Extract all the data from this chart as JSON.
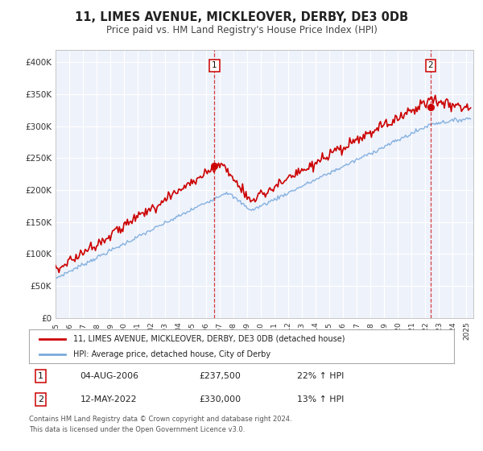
{
  "title": "11, LIMES AVENUE, MICKLEOVER, DERBY, DE3 0DB",
  "subtitle": "Price paid vs. HM Land Registry's House Price Index (HPI)",
  "title_fontsize": 10.5,
  "subtitle_fontsize": 8.5,
  "line1_color": "#cc0000",
  "line2_color": "#7aaadd",
  "plot_bg_color": "#eef2fb",
  "ylim": [
    0,
    420000
  ],
  "xlim_start": 1995.0,
  "xlim_end": 2025.5,
  "legend_line1": "11, LIMES AVENUE, MICKLEOVER, DERBY, DE3 0DB (detached house)",
  "legend_line2": "HPI: Average price, detached house, City of Derby",
  "marker1_date": 2006.6,
  "marker1_value": 237500,
  "marker2_date": 2022.37,
  "marker2_value": 330000,
  "annotation1_date": "04-AUG-2006",
  "annotation1_price": "£237,500",
  "annotation1_pct": "22% ↑ HPI",
  "annotation2_date": "12-MAY-2022",
  "annotation2_price": "£330,000",
  "annotation2_pct": "13% ↑ HPI",
  "footnote1": "Contains HM Land Registry data © Crown copyright and database right 2024.",
  "footnote2": "This data is licensed under the Open Government Licence v3.0.",
  "yticks": [
    0,
    50000,
    100000,
    150000,
    200000,
    250000,
    300000,
    350000,
    400000
  ],
  "ytick_labels": [
    "£0",
    "£50K",
    "£100K",
    "£150K",
    "£200K",
    "£250K",
    "£300K",
    "£350K",
    "£400K"
  ]
}
